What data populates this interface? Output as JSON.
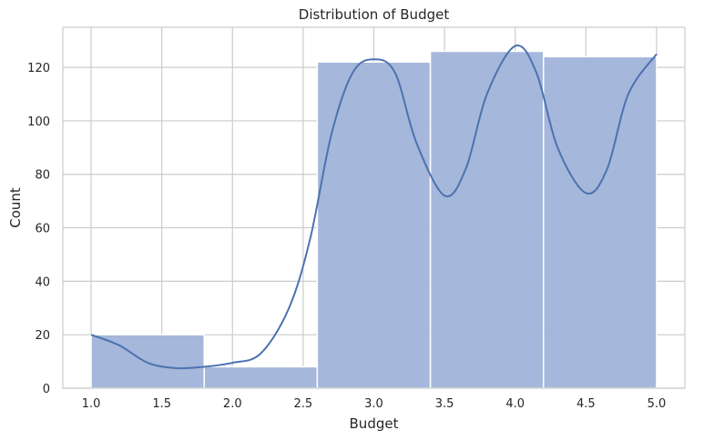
{
  "chart_data": {
    "type": "bar",
    "subtype": "histogram with kde line",
    "title": "Distribution of Budget",
    "xlabel": "Budget",
    "ylabel": "Count",
    "xlim": [
      0.8,
      5.2
    ],
    "ylim": [
      0,
      135
    ],
    "xticks": [
      1.0,
      1.5,
      2.0,
      2.5,
      3.0,
      3.5,
      4.0,
      4.5,
      5.0
    ],
    "xtick_labels": [
      "1.0",
      "1.5",
      "2.0",
      "2.5",
      "3.0",
      "3.5",
      "4.0",
      "4.5",
      "5.0"
    ],
    "yticks": [
      0,
      20,
      40,
      60,
      80,
      100,
      120
    ],
    "ytick_labels": [
      "0",
      "20",
      "40",
      "60",
      "80",
      "100",
      "120"
    ],
    "bins": [
      {
        "x0": 1.0,
        "x1": 1.8,
        "count": 20
      },
      {
        "x0": 1.8,
        "x1": 2.6,
        "count": 8
      },
      {
        "x0": 2.6,
        "x1": 3.4,
        "count": 122
      },
      {
        "x0": 3.4,
        "x1": 4.2,
        "count": 126
      },
      {
        "x0": 4.2,
        "x1": 5.0,
        "count": 124
      }
    ],
    "kde": {
      "x": [
        1.0,
        1.2,
        1.4,
        1.6,
        1.8,
        2.0,
        2.2,
        2.4,
        2.55,
        2.7,
        2.85,
        3.0,
        3.15,
        3.3,
        3.5,
        3.65,
        3.8,
        4.0,
        4.15,
        4.3,
        4.5,
        4.65,
        4.8,
        5.0
      ],
      "y": [
        20,
        16,
        9.5,
        7.5,
        8,
        9.5,
        13,
        30,
        56,
        95,
        118,
        123,
        118,
        92,
        72,
        82,
        110,
        128,
        118,
        90,
        73,
        82,
        110,
        125
      ]
    },
    "grid": true,
    "legend": "none",
    "colors": {
      "bar_fill": "#a3b6d9",
      "bar_edge": "#ffffff",
      "kde_line": "#4c72b0",
      "grid": "#cccccc",
      "spine": "#cccccc",
      "text": "#262626"
    }
  }
}
